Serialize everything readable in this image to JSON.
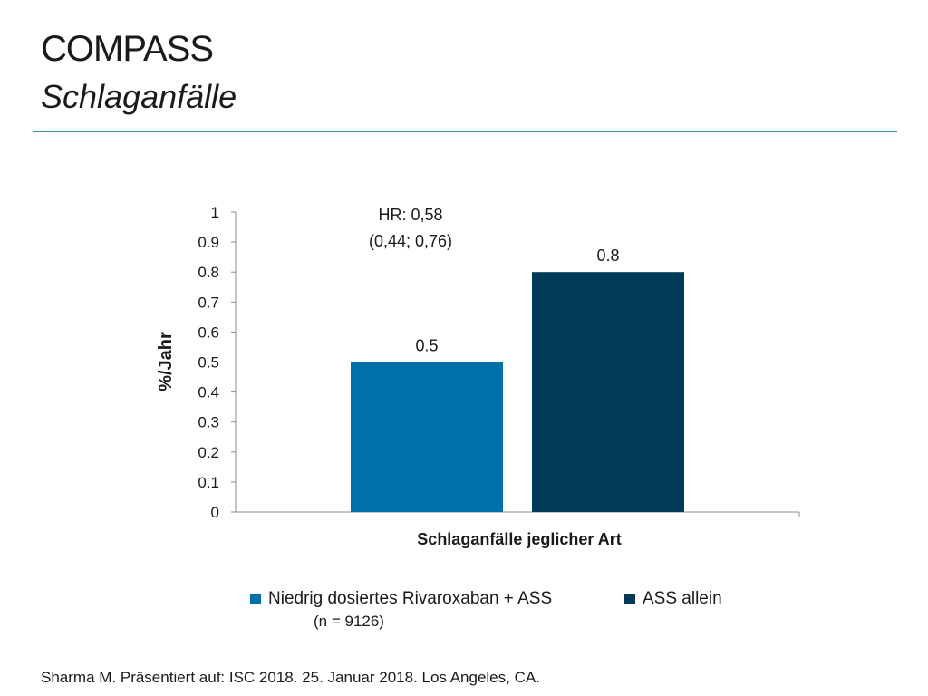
{
  "slide": {
    "title": "COMPASS",
    "subtitle": "Schlaganfälle",
    "footer": "Sharma M. Präsentiert auf: ISC 2018. 25. Januar 2018. Los Angeles, CA."
  },
  "colors": {
    "rule": "#3a8eaa",
    "series_1": "#0070a8",
    "series_2": "#003a57"
  },
  "chart_data": {
    "type": "bar",
    "categories": [
      "Schlaganfälle jeglicher Art"
    ],
    "xlabel": "Schlaganfälle jeglicher Art",
    "ylabel": "%/Jahr",
    "ylim": [
      0,
      1
    ],
    "yticks": [
      "0",
      "0.1",
      "0.2",
      "0.3",
      "0.4",
      "0.5",
      "0.6",
      "0.7",
      "0.8",
      "0.9",
      "1"
    ],
    "grid": false,
    "legend_position": "bottom",
    "series": [
      {
        "name": "Niedrig dosiertes Rivaroxaban + ASS",
        "values": [
          0.5
        ],
        "value_labels": [
          "0.5"
        ],
        "color": "#0070a8"
      },
      {
        "name": "ASS allein",
        "values": [
          0.8
        ],
        "value_labels": [
          "0.8"
        ],
        "color": "#003a57"
      }
    ],
    "annotation": {
      "line1": "HR: 0,58",
      "line2": "(0,44; 0,76)"
    },
    "legend_note": "(n = 9126)"
  }
}
